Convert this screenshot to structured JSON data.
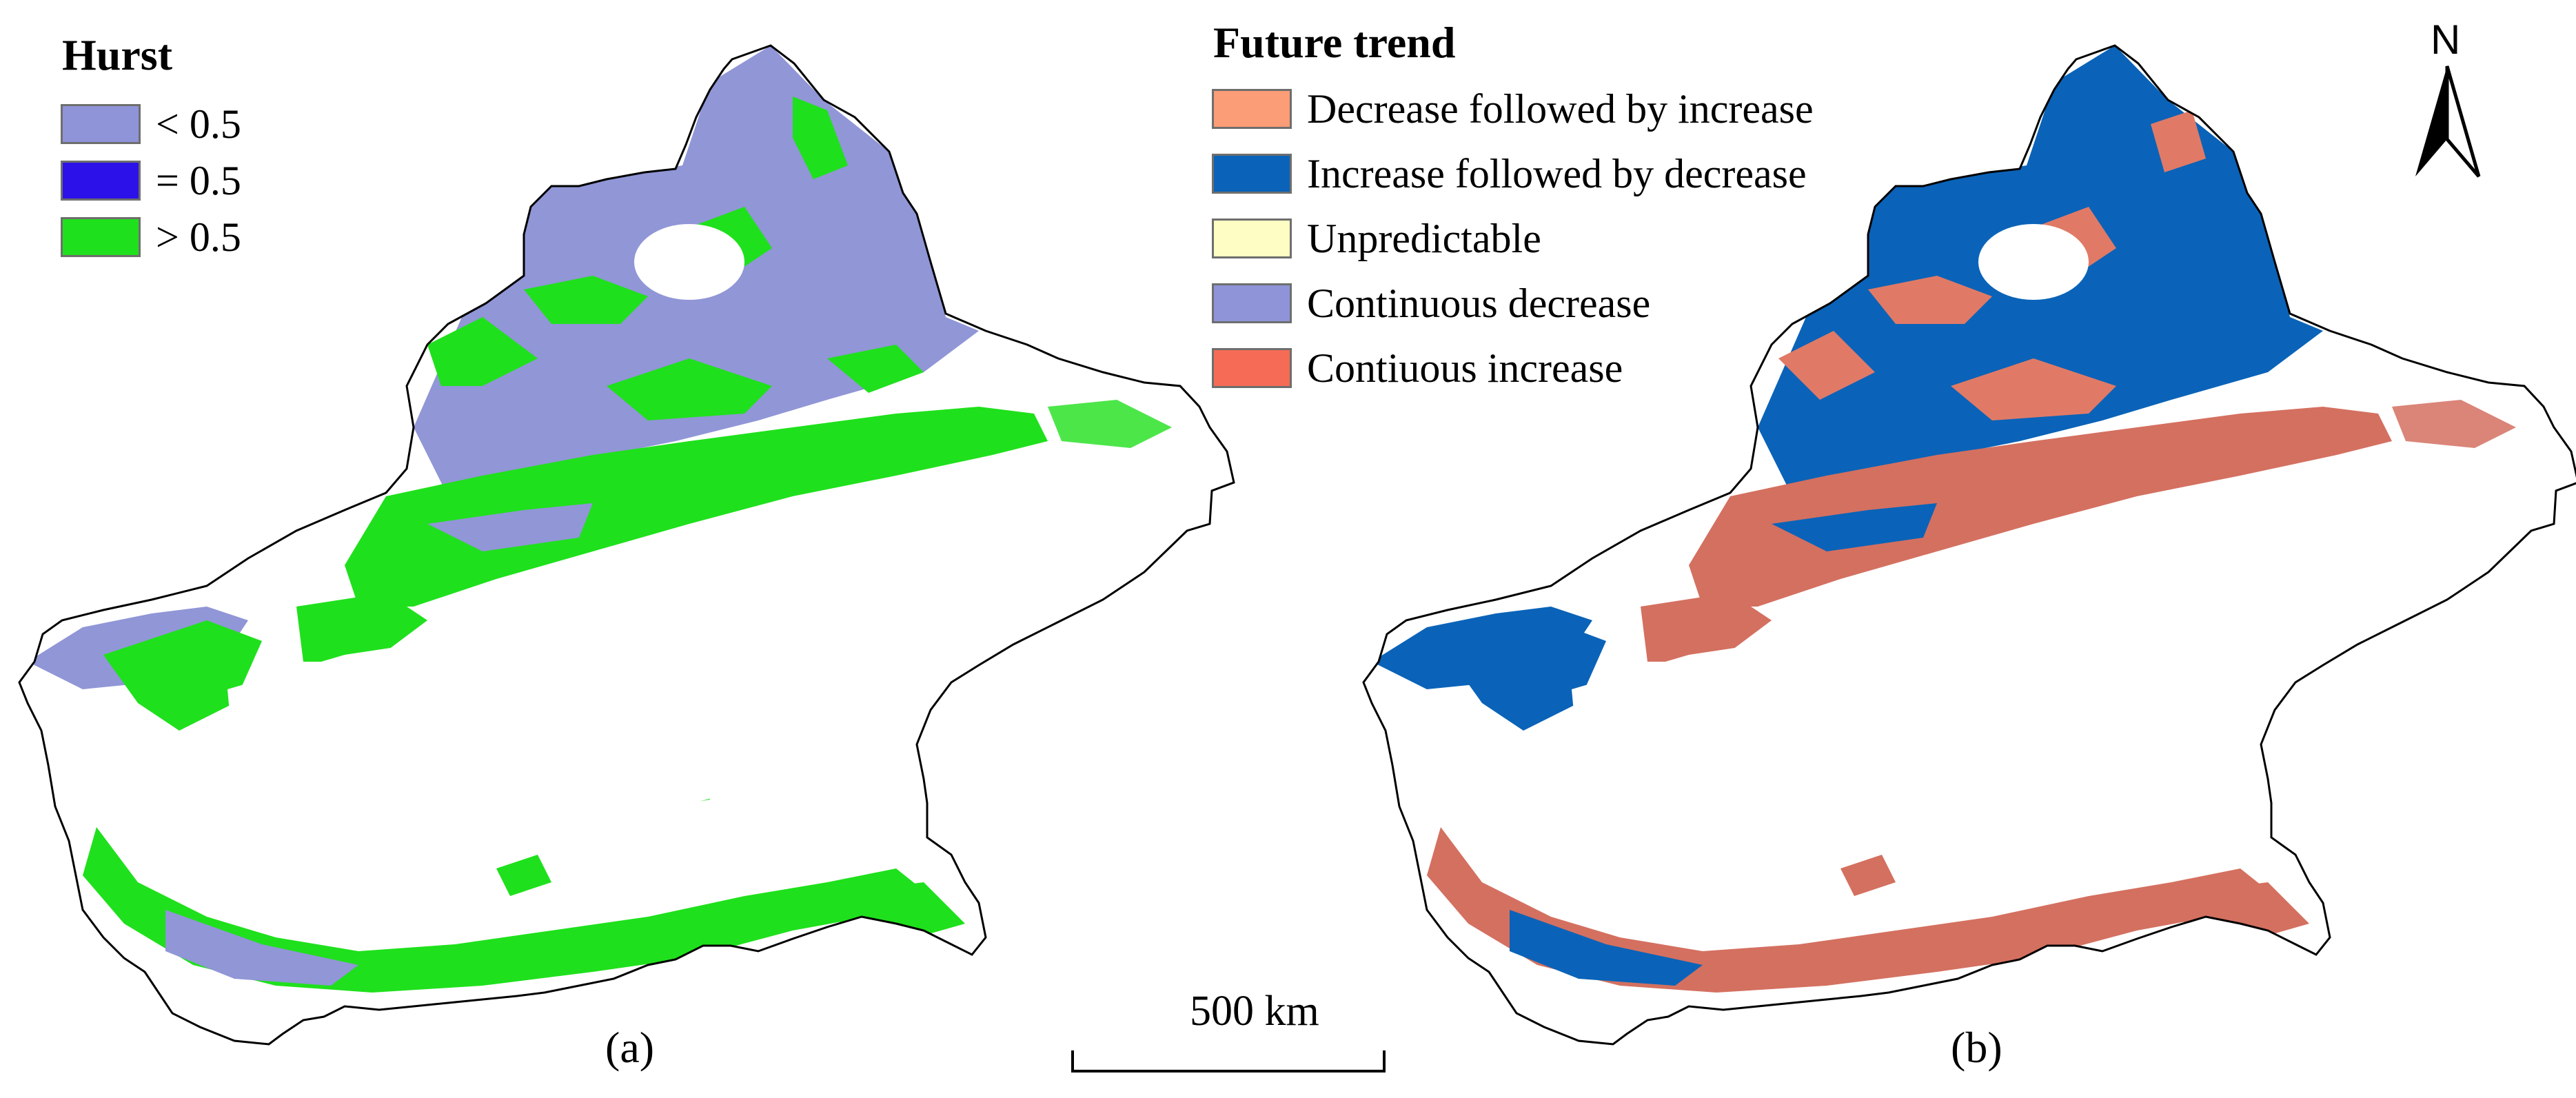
{
  "map_a": {
    "legend_title": "Hurst",
    "legend_items": [
      {
        "label": "< 0.5",
        "color": "#8f94d9"
      },
      {
        "label": "= 0.5",
        "color": "#2c12e8"
      },
      {
        "label": "> 0.5",
        "color": "#1fe01c"
      }
    ],
    "panel_label": "(a)"
  },
  "map_b": {
    "legend_title": "Future trend",
    "legend_items": [
      {
        "label": "Decrease followed by increase",
        "color": "#fb9d76"
      },
      {
        "label": "Increase followed by decrease",
        "color": "#0a63b8"
      },
      {
        "label": "Unpredictable",
        "color": "#fdfdc4"
      },
      {
        "label": "Continuous decrease",
        "color": "#8f94d9"
      },
      {
        "label": "Contiuous increase",
        "color": "#f56b55"
      }
    ],
    "panel_label": "(b)"
  },
  "scale_bar": {
    "label": "500 km"
  },
  "north_arrow": {
    "letter": "N",
    "icon": "north-arrow-icon"
  }
}
